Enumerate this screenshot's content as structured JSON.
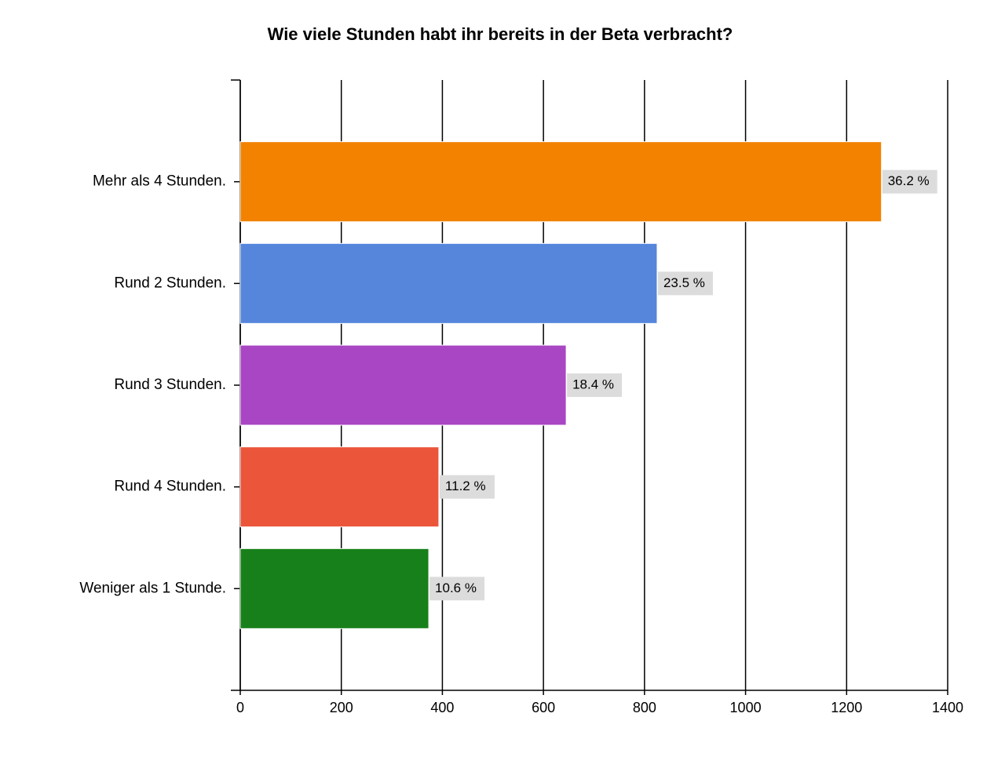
{
  "chart_data": {
    "type": "hbar",
    "title": "Wie viele Stunden habt ihr bereits in der Beta verbracht?",
    "categories": [
      "Mehr als 4 Stunden.",
      "Rund 2 Stunden.",
      "Rund 3 Stunden.",
      "Rund 4 Stunden.",
      "Weniger als 1 Stunde."
    ],
    "values": [
      1269,
      825,
      645,
      393,
      373
    ],
    "data_labels": [
      "36.2 %",
      "23.5 %",
      "18.4 %",
      "11.2 %",
      "10.6 %"
    ],
    "colors": [
      "#f28200",
      "#5586dc",
      "#a946c3",
      "#eb553a",
      "#17801a"
    ],
    "xlim": [
      0,
      1400
    ],
    "xticks": [
      0,
      200,
      400,
      600,
      800,
      1000,
      1200,
      1400
    ],
    "grid": true
  }
}
